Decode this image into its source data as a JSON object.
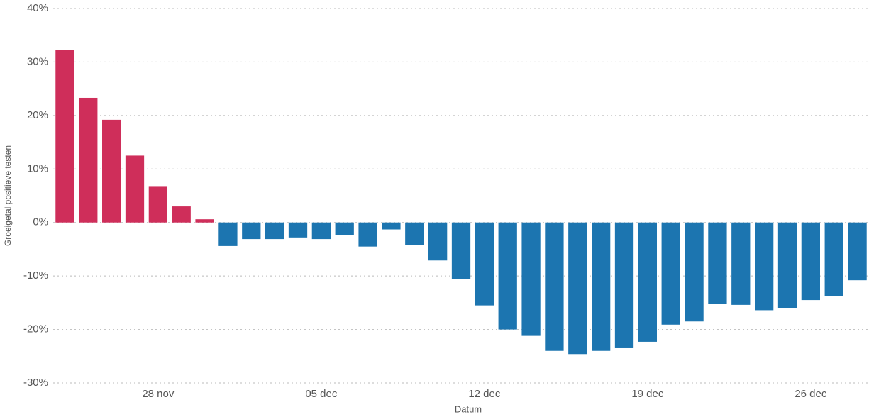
{
  "chart_data": {
    "type": "bar",
    "x_label": "Datum",
    "y_label": "Groeigetal positieve testen",
    "categories": [
      null,
      null,
      null,
      null,
      "28 nov",
      null,
      null,
      null,
      null,
      null,
      null,
      "05 dec",
      null,
      null,
      null,
      null,
      null,
      null,
      "12 dec",
      null,
      null,
      null,
      null,
      null,
      null,
      "19 dec",
      null,
      null,
      null,
      null,
      null,
      null,
      "26 dec",
      null,
      null
    ],
    "values": [
      32.2,
      23.3,
      19.2,
      12.5,
      6.8,
      3.0,
      0.6,
      -4.4,
      -3.1,
      -3.1,
      -2.8,
      -3.1,
      -2.3,
      -4.5,
      -1.3,
      -4.2,
      -7.1,
      -10.6,
      -15.5,
      -20.0,
      -21.2,
      -24.0,
      -24.6,
      -24.0,
      -23.5,
      -22.3,
      -19.1,
      -18.5,
      -15.2,
      -15.4,
      -16.4,
      -16.0,
      -14.5,
      -13.7,
      -10.8
    ],
    "colors": {
      "positive": "#cf2e5a",
      "negative": "#1c75b0"
    },
    "ylim": [
      -30,
      40
    ],
    "yticks": [
      {
        "value": -30,
        "label": "-30%"
      },
      {
        "value": -20,
        "label": "-20%"
      },
      {
        "value": -10,
        "label": "-10%"
      },
      {
        "value": 0,
        "label": "0%"
      },
      {
        "value": 10,
        "label": "10%"
      },
      {
        "value": 20,
        "label": "20%"
      },
      {
        "value": 30,
        "label": "30%"
      },
      {
        "value": 40,
        "label": "40%"
      }
    ],
    "grid": true
  }
}
